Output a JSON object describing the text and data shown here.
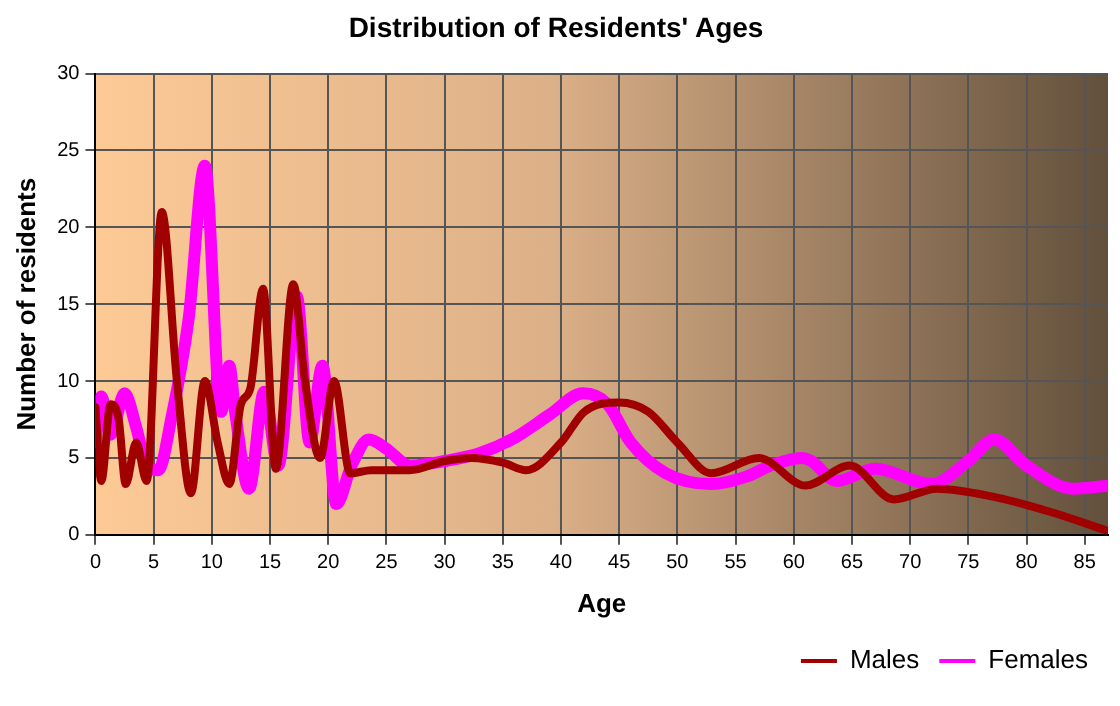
{
  "chart_data": {
    "type": "line",
    "title": "Distribution of Residents' Ages",
    "xlabel": "Age",
    "ylabel": "Number of residents",
    "xlim": [
      0,
      87
    ],
    "xticks": [
      0,
      5,
      10,
      15,
      20,
      25,
      30,
      35,
      40,
      45,
      50,
      55,
      60,
      65,
      70,
      75,
      80,
      85
    ],
    "ylim": [
      0,
      30
    ],
    "yticks": [
      0,
      5,
      10,
      15,
      20,
      25,
      30
    ],
    "grid": true,
    "legend": "bottom right",
    "marker": "none",
    "line_style": "solid",
    "series": [
      {
        "name": "Males",
        "color": "#a00000",
        "x": [
          0,
          0.5,
          1.3,
          2,
          2.6,
          3.5,
          4.4,
          5.7,
          7,
          8.2,
          9.4,
          10.5,
          11.5,
          12.5,
          13.3,
          14.4,
          15.5,
          17,
          18,
          19.3,
          20.5,
          21.9,
          23.7,
          27,
          30,
          32.3,
          35,
          37,
          40,
          42,
          45,
          47.5,
          50,
          52.9,
          57,
          61,
          64.8,
          68.6,
          72.3,
          77,
          82,
          86.8
        ],
        "values": [
          8.3,
          3.5,
          8.5,
          7.5,
          3.3,
          6,
          3.5,
          21,
          10,
          2.7,
          10,
          6,
          3.3,
          8.5,
          9.5,
          16,
          4.3,
          16.3,
          10,
          5,
          10,
          4,
          4.2,
          4.2,
          4.8,
          5,
          4.7,
          4.2,
          6,
          8,
          8.6,
          8,
          6,
          4,
          5,
          3.2,
          4.5,
          2.3,
          3,
          2.5,
          1.5,
          0.3
        ]
      },
      {
        "name": "Females",
        "color": "#ff00ff",
        "x": [
          0,
          0.5,
          1.3,
          2.5,
          3.5,
          4.4,
          5.4,
          6.5,
          8,
          9.4,
          10.8,
          11.5,
          12,
          13.2,
          14.5,
          15.7,
          17.3,
          18.4,
          19.5,
          20.7,
          22,
          23.5,
          25,
          27,
          30,
          33,
          36,
          39,
          41.9,
          44,
          46,
          49,
          52.9,
          56,
          58,
          60.7,
          61.5,
          63.7,
          67,
          71.8,
          75,
          77.2,
          80,
          84,
          87
        ],
        "values": [
          6,
          9,
          6.5,
          9.2,
          7,
          4.5,
          4.2,
          7.5,
          14,
          24,
          8,
          11,
          8,
          3,
          9.3,
          4.5,
          15.5,
          6,
          11,
          2,
          4.5,
          6.2,
          5.6,
          4.5,
          4.8,
          5.3,
          6.3,
          7.8,
          9.2,
          8.5,
          6,
          4,
          3.3,
          3.8,
          4.5,
          5,
          4.8,
          3.5,
          4.3,
          3.3,
          4.8,
          6.2,
          4.5,
          3,
          3.2
        ]
      }
    ]
  }
}
